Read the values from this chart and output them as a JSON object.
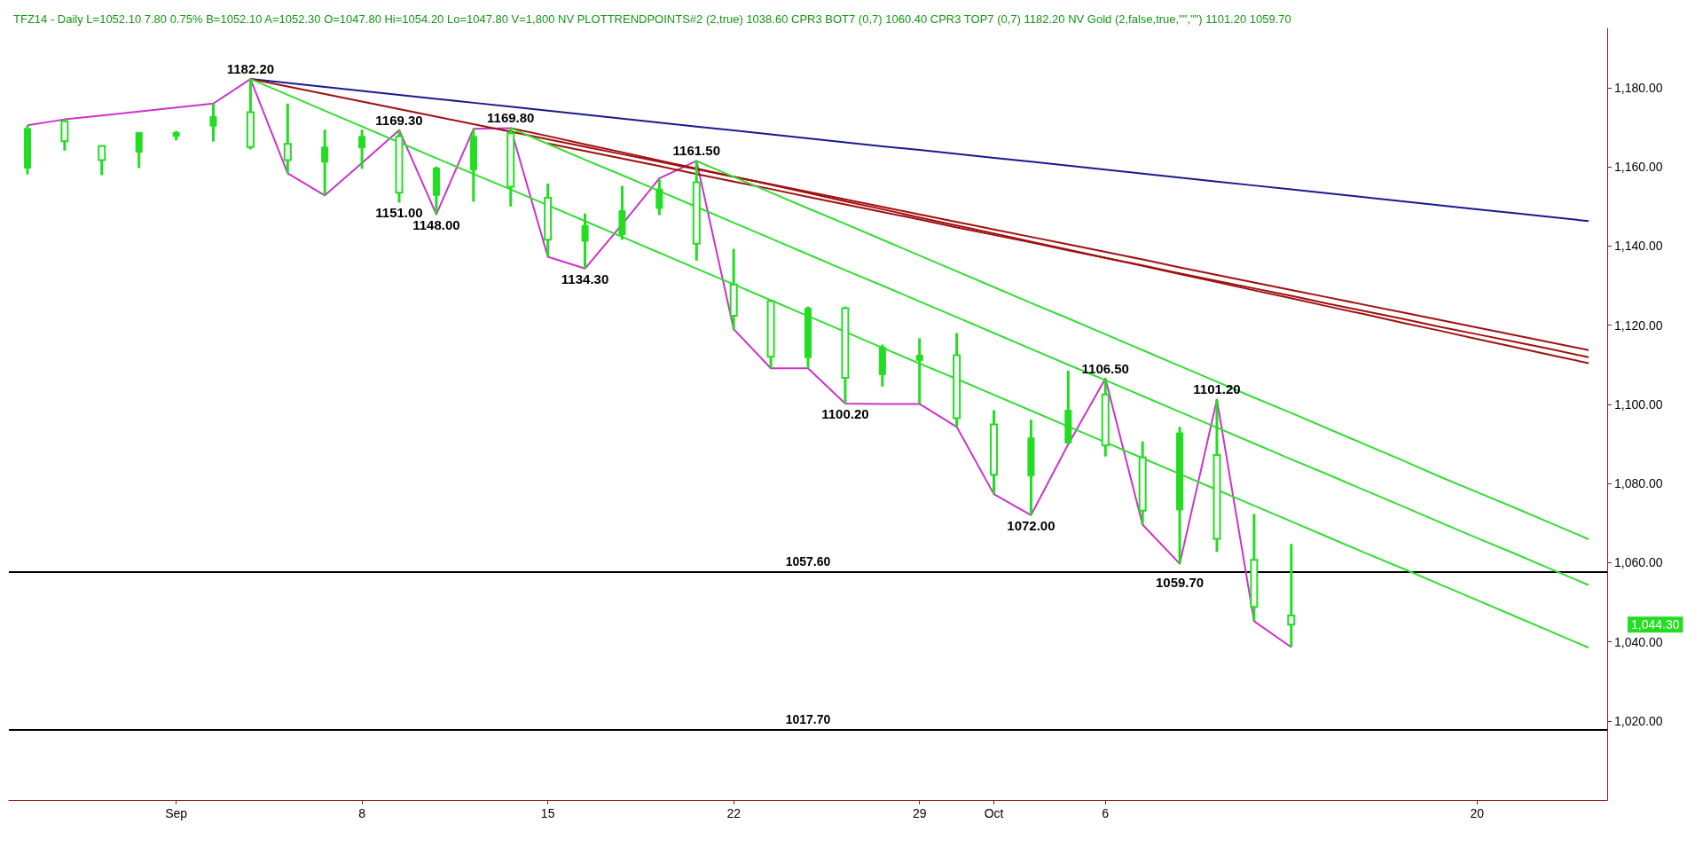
{
  "chart_data": {
    "type": "candlestick",
    "title": "TFZ14 - Daily L=1052.10 7.80 0.75% B=1052.10 A=1052.30 O=1047.80 Hi=1054.20 Lo=1047.80 V=1,800 NV PLOTTRENDPOINTS#2 (2,true) 1038.60 CPR3 BOT7 (0,7) 1060.40 CPR3 TOP7 (0,7) 1182.20 NV Gold (2,false,true,\"\",\"\") 1101.20 1059.70",
    "color": "#22dd22",
    "categories": [
      null,
      null,
      null,
      null,
      "Sep",
      null,
      null,
      null,
      null,
      "8",
      null,
      null,
      null,
      null,
      "15",
      null,
      null,
      null,
      null,
      "22",
      null,
      null,
      null,
      null,
      "29",
      null,
      "Oct",
      null,
      null,
      "6",
      null,
      null,
      null,
      null,
      null,
      null,
      null,
      null,
      null,
      "20",
      null,
      null,
      null
    ],
    "ohlc": [
      [
        1159.7,
        1170.5,
        1158.1,
        1169.7
      ],
      [
        1171.5,
        1172.0,
        1164.1,
        1166.5
      ],
      [
        1165.3,
        1165.4,
        1157.9,
        1161.7
      ],
      [
        1163.7,
        1168.7,
        1159.7,
        1168.7
      ],
      [
        1167.7,
        1169.1,
        1166.7,
        1168.7
      ],
      [
        1170.3,
        1176.0,
        1166.4,
        1172.7
      ],
      [
        1173.8,
        1182.2,
        1164.4,
        1165.0
      ],
      [
        1165.8,
        1176.0,
        1158.4,
        1161.7
      ],
      [
        1161.2,
        1169.4,
        1152.8,
        1165.0
      ],
      [
        1164.8,
        1169.4,
        1159.5,
        1167.7
      ],
      [
        1167.7,
        1169.3,
        1151.0,
        1153.5
      ],
      [
        1152.8,
        1160.1,
        1148.0,
        1159.7
      ],
      [
        1159.2,
        1169.6,
        1151.2,
        1167.7
      ],
      [
        1168.5,
        1169.8,
        1150.0,
        1155.0
      ],
      [
        1152.2,
        1155.8,
        1137.3,
        1141.6
      ],
      [
        1141.2,
        1148.2,
        1134.3,
        1145.2
      ],
      [
        1142.9,
        1155.2,
        1141.6,
        1148.9
      ],
      [
        1149.5,
        1156.8,
        1147.8,
        1154.4
      ],
      [
        1156.1,
        1161.5,
        1136.3,
        1140.6
      ],
      [
        1130.3,
        1139.3,
        1119.0,
        1122.4
      ],
      [
        1126.1,
        1126.3,
        1109.1,
        1112.0
      ],
      [
        1111.8,
        1124.7,
        1109.1,
        1124.3
      ],
      [
        1124.3,
        1124.7,
        1100.2,
        1106.7
      ],
      [
        1107.5,
        1115.1,
        1104.5,
        1114.4
      ],
      [
        1111.1,
        1116.7,
        1100.2,
        1112.4
      ],
      [
        1112.4,
        1118.0,
        1094.3,
        1096.5
      ],
      [
        1094.9,
        1098.5,
        1077.3,
        1082.2
      ],
      [
        1081.9,
        1096.1,
        1072.0,
        1091.5
      ],
      [
        1090.2,
        1108.5,
        1089.9,
        1098.5
      ],
      [
        1102.5,
        1106.5,
        1086.8,
        1089.6
      ],
      [
        1086.6,
        1090.6,
        1069.6,
        1073.1
      ],
      [
        1073.3,
        1094.3,
        1059.7,
        1092.8
      ],
      [
        1087.2,
        1101.2,
        1062.7,
        1066.0
      ],
      [
        1060.7,
        1072.3,
        1045.2,
        1048.8
      ],
      [
        1046.6,
        1064.7,
        1038.6,
        1044.3
      ],
      null,
      null,
      null,
      null,
      null,
      null,
      null,
      null
    ],
    "series": [
      {
        "type": "line",
        "color": "#cc33cc",
        "values": [
          1170.5,
          1172.0,
          1173.0,
          1174.0,
          1175.0,
          1176.0,
          1182.2,
          1158.4,
          1152.8,
          1161.0,
          1169.3,
          1148.0,
          1169.6,
          1169.8,
          1137.3,
          1134.3,
          1145.5,
          1157.1,
          1161.5,
          1119.0,
          1109.1,
          1109.1,
          1100.2,
          1100.1,
          1100.1,
          1094.3,
          1077.3,
          1072.0,
          1089.9,
          1106.5,
          1069.6,
          1059.7,
          1101.2,
          1045.2,
          1038.6,
          null,
          null,
          null,
          null,
          null,
          null,
          null,
          null
        ]
      },
      {
        "type": "line",
        "color": "#1a1a8c",
        "values": [
          null,
          null,
          null,
          null,
          null,
          null,
          1182.2,
          1181.2,
          1180.2,
          1179.2,
          1178.2,
          1177.2,
          1176.2,
          1175.2,
          1174.2,
          1173.2,
          1172.2,
          1171.2,
          1170.2,
          1169.2,
          1168.2,
          1167.2,
          1166.2,
          1165.2,
          1164.3,
          1163.3,
          1162.3,
          1161.3,
          1160.3,
          1159.3,
          1158.3,
          1157.3,
          1156.3,
          1155.3,
          1154.3,
          1153.3,
          1152.3,
          1151.3,
          1150.3,
          1149.3,
          1148.3,
          1147.3,
          1146.3
        ]
      },
      {
        "type": "line",
        "color": "#a01010",
        "values": [
          null,
          null,
          null,
          null,
          null,
          null,
          1182.2,
          1180.3,
          1178.4,
          1176.5,
          1174.6,
          1172.7,
          1170.8,
          1168.9,
          1167.0,
          1165.1,
          1163.2,
          1161.3,
          1159.4,
          1157.5,
          1155.6,
          1153.7,
          1151.8,
          1149.9,
          1148.0,
          1146.1,
          1144.2,
          1142.3,
          1140.4,
          1138.5,
          1136.6,
          1134.6,
          1132.7,
          1130.8,
          1128.9,
          1127.0,
          1125.1,
          1123.2,
          1121.3,
          1119.4,
          1117.5,
          1115.6,
          1113.7
        ]
      },
      {
        "type": "line",
        "color": "#a01010",
        "values": [
          null,
          null,
          null,
          null,
          null,
          null,
          null,
          null,
          null,
          null,
          null,
          null,
          null,
          null,
          1165.9,
          1164.0,
          1162.1,
          1160.2,
          1158.2,
          1156.3,
          1154.4,
          1152.4,
          1150.5,
          1148.6,
          1146.7,
          1144.7,
          1142.8,
          1140.9,
          1138.9,
          1137.0,
          1135.1,
          1133.1,
          1131.2,
          1129.3,
          1127.4,
          1125.4,
          1123.5,
          1121.6,
          1119.6,
          1117.7,
          1115.8,
          1113.9,
          1111.9
        ]
      },
      {
        "type": "line",
        "color": "#a01010",
        "values": [
          null,
          null,
          null,
          null,
          null,
          null,
          null,
          null,
          null,
          null,
          null,
          null,
          null,
          1169.8,
          1167.8,
          1165.7,
          1163.7,
          1161.6,
          1159.6,
          1157.5,
          1155.5,
          1153.4,
          1151.3,
          1149.3,
          1147.2,
          1145.2,
          1143.2,
          1141.1,
          1139.1,
          1137.0,
          1135.0,
          1132.9,
          1130.9,
          1128.8,
          1126.8,
          1124.7,
          1122.7,
          1120.6,
          1118.6,
          1116.5,
          1114.5,
          1112.4,
          1110.4
        ]
      },
      {
        "type": "line",
        "color": "#33dd33",
        "values": [
          null,
          null,
          null,
          null,
          null,
          null,
          1182.2,
          1178.2,
          1174.2,
          1170.2,
          1166.2,
          1162.2,
          1158.2,
          1154.3,
          1150.3,
          1146.3,
          1142.3,
          1138.3,
          1134.3,
          1130.3,
          1126.3,
          1122.3,
          1118.3,
          1114.3,
          1110.3,
          1106.4,
          1102.4,
          1098.4,
          1094.4,
          1090.4,
          1086.4,
          1082.4,
          1078.4,
          1074.4,
          1070.4,
          1066.4,
          1062.4,
          1058.5,
          1054.5,
          1050.5,
          1046.5,
          1042.5,
          1038.5
        ]
      },
      {
        "type": "line",
        "color": "#33dd33",
        "values": [
          null,
          null,
          null,
          null,
          null,
          null,
          null,
          null,
          null,
          null,
          null,
          null,
          null,
          1169.8,
          1165.8,
          1161.8,
          1157.9,
          1153.9,
          1149.9,
          1145.9,
          1141.9,
          1137.9,
          1133.9,
          1130.0,
          1126.0,
          1122.0,
          1118.0,
          1114.0,
          1110.0,
          1106.1,
          1102.1,
          1098.1,
          1094.1,
          1090.1,
          1086.1,
          1082.2,
          1078.2,
          1074.2,
          1070.2,
          1066.2,
          1062.3,
          1058.3,
          1054.3
        ]
      },
      {
        "type": "line",
        "color": "#33dd33",
        "values": [
          null,
          null,
          null,
          null,
          null,
          null,
          null,
          null,
          null,
          null,
          null,
          null,
          null,
          null,
          null,
          null,
          null,
          null,
          1161.5,
          1157.5,
          1153.5,
          1149.5,
          1145.6,
          1141.6,
          1137.6,
          1133.6,
          1129.6,
          1125.6,
          1121.7,
          1117.7,
          1113.7,
          1109.7,
          1105.7,
          1101.7,
          1097.8,
          1093.8,
          1089.8,
          1085.8,
          1081.7,
          1077.8,
          1073.9,
          1069.9,
          1065.9
        ]
      }
    ],
    "line_style": "solid",
    "ylim": [
      1000,
      1195
    ],
    "yticks": [
      {
        "value": 1020,
        "label": "1,020.00"
      },
      {
        "value": 1040,
        "label": "1,040.00"
      },
      {
        "value": 1060,
        "label": "1,060.00"
      },
      {
        "value": 1080,
        "label": "1,080.00"
      },
      {
        "value": 1100,
        "label": "1,100.00"
      },
      {
        "value": 1120,
        "label": "1,120.00"
      },
      {
        "value": 1140,
        "label": "1,140.00"
      },
      {
        "value": 1160,
        "label": "1,160.00"
      },
      {
        "value": 1180,
        "label": "1,180.00"
      }
    ],
    "ref_lines": [
      {
        "axis": "y",
        "value": 1057.6,
        "label": "1057.60",
        "color": "#000000"
      },
      {
        "axis": "y",
        "value": 1017.7,
        "label": "1017.70",
        "color": "#000000"
      }
    ],
    "annotations": [
      {
        "text": "1182.20",
        "y": 1182.2
      },
      {
        "text": "1169.30",
        "y": 1169.3
      },
      {
        "text": "1151.00",
        "y": 1151.0
      },
      {
        "text": "1148.00",
        "y": 1148.0
      },
      {
        "text": "1169.80",
        "y": 1169.8
      },
      {
        "text": "1134.30",
        "y": 1134.3
      },
      {
        "text": "1161.50",
        "y": 1161.5
      },
      {
        "text": "1100.20",
        "y": 1100.2
      },
      {
        "text": "1072.00",
        "y": 1072.0
      },
      {
        "text": "1106.50",
        "y": 1106.5
      },
      {
        "text": "1059.70",
        "y": 1059.7
      },
      {
        "text": "1101.20",
        "y": 1101.2
      },
      "1,044.30"
    ],
    "grid": false
  }
}
